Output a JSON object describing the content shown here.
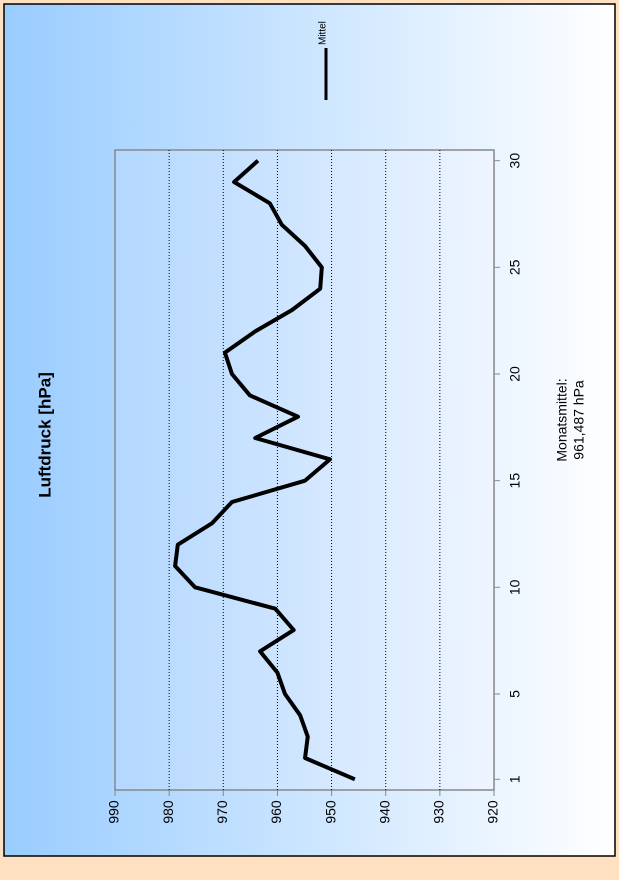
{
  "chart_data": {
    "type": "line",
    "title": "Luftdruck [hPa]",
    "annotation": [
      "Monatsmittel:",
      "961,487 hPa"
    ],
    "x": [
      1,
      2,
      3,
      4,
      5,
      6,
      7,
      8,
      9,
      10,
      11,
      12,
      13,
      14,
      15,
      16,
      17,
      18,
      19,
      20,
      21,
      22,
      23,
      24,
      25,
      26,
      27,
      28,
      29,
      30
    ],
    "series": [
      {
        "name": "Mittel",
        "color": "#000000",
        "values": [
          945.7,
          954.9,
          954.4,
          955.8,
          958.6,
          960,
          963.2,
          957,
          960.4,
          975.2,
          978.9,
          978.4,
          972.1,
          968.4,
          954.9,
          950.3,
          964.1,
          956.2,
          965.1,
          968.4,
          969.7,
          964.1,
          957.3,
          952.1,
          951.8,
          954.9,
          959.2,
          961.4,
          968,
          963.6
        ]
      }
    ],
    "xlim": [
      0.5,
      30.5
    ],
    "xticks": [
      1,
      5,
      10,
      15,
      20,
      25,
      30
    ],
    "ylim": [
      920,
      990
    ],
    "yticks": [
      920,
      930,
      940,
      950,
      960,
      970,
      980,
      990
    ],
    "grid": true
  }
}
